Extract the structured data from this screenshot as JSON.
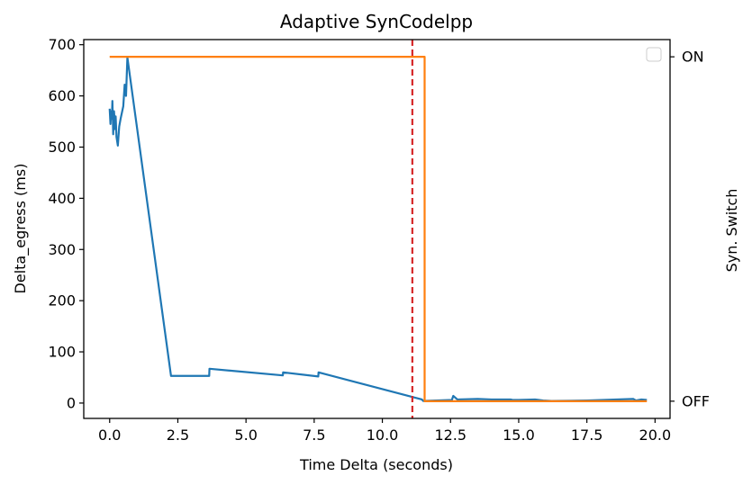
{
  "chart_data": {
    "type": "line",
    "title": "Adaptive SynCodelpp",
    "xlabel": "Time Delta (seconds)",
    "ylabel": "Delta_egress (ms)",
    "y2label": "Syn. Switch",
    "xlim": [
      -0.95,
      20.55
    ],
    "ylim": [
      -30,
      710
    ],
    "xticks": [
      0.0,
      2.5,
      5.0,
      7.5,
      10.0,
      12.5,
      15.0,
      17.5,
      20.0
    ],
    "xtick_labels": [
      "0.0",
      "2.5",
      "5.0",
      "7.5",
      "10.0",
      "12.5",
      "15.0",
      "17.5",
      "20.0"
    ],
    "yticks": [
      0,
      100,
      200,
      300,
      400,
      500,
      600,
      700
    ],
    "ytick_labels": [
      "0",
      "100",
      "200",
      "300",
      "400",
      "500",
      "600",
      "700"
    ],
    "y2ticks": [
      0,
      1
    ],
    "y2tick_labels": [
      "OFF",
      "ON"
    ],
    "y2lim": [
      -0.05,
      1.05
    ],
    "grid": false,
    "legend": "top-right (empty box)",
    "vline": {
      "x": 11.1,
      "color": "#d62728",
      "style": "dashed"
    },
    "series": [
      {
        "axis": "left",
        "color": "#1f77b4",
        "x": [
          0.0,
          0.03,
          0.05,
          0.08,
          0.1,
          0.13,
          0.16,
          0.2,
          0.22,
          0.25,
          0.3,
          0.35,
          0.4,
          0.5,
          0.55,
          0.6,
          0.65,
          2.25,
          3.65,
          3.66,
          6.35,
          6.36,
          7.65,
          7.66,
          11.45,
          11.5,
          12.55,
          12.6,
          12.75,
          13.5,
          14.0,
          14.7,
          14.8,
          15.0,
          15.6,
          15.9,
          16.2,
          17.5,
          19.2,
          19.3,
          19.5,
          19.7
        ],
        "y": [
          575,
          545,
          570,
          555,
          590,
          525,
          570,
          535,
          560,
          520,
          503,
          540,
          555,
          580,
          622,
          600,
          675,
          53,
          53,
          67,
          54,
          60,
          52,
          60,
          7,
          4,
          6,
          14,
          7,
          8,
          7,
          7,
          6,
          6,
          7,
          5,
          4,
          5,
          8,
          5,
          7,
          6
        ]
      },
      {
        "axis": "right",
        "color": "#ff7f0e",
        "x": [
          0.0,
          11.55,
          11.55,
          19.7
        ],
        "y": [
          1,
          1,
          0,
          0
        ]
      }
    ]
  }
}
